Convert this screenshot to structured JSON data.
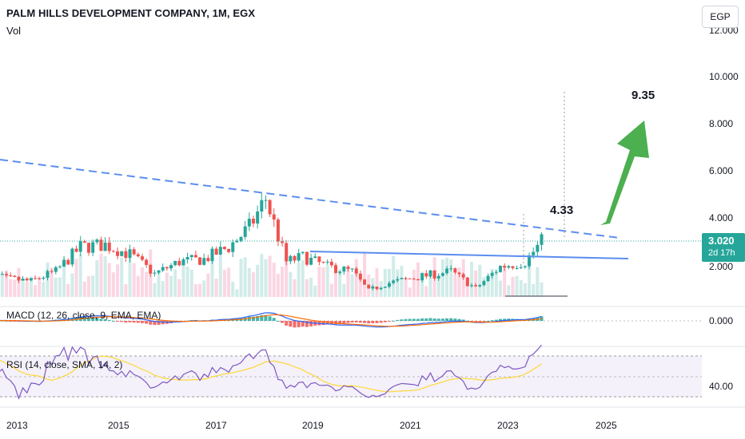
{
  "header": {
    "title": "PALM HILLS DEVELOPMENT COMPANY, 1M, EGX",
    "volume_label": "Vol",
    "currency_button": "EGP"
  },
  "price_badge": {
    "value": "3.020",
    "countdown": "2d 17h",
    "color": "#26a69a"
  },
  "indicators": {
    "macd_label": "MACD (12, 26, close, 9, EMA, EMA)",
    "rsi_label": "RSI (14, close, SMA, 14, 2)"
  },
  "annotations": {
    "target_high": "9.35",
    "target_mid": "4.33"
  },
  "colors": {
    "up": "#26a69a",
    "down": "#ef5350",
    "trendline": "#5b8def",
    "arrow": "#4caf50",
    "macd": "#2962ff",
    "signal": "#ff6d00",
    "rsi": "#7e57c2",
    "rsi_ma": "#fdd835"
  },
  "chart_data": {
    "type": "candlestick",
    "x_tick_labels": [
      "2013",
      "2015",
      "2017",
      "2019",
      "2021",
      "2023",
      "2025"
    ],
    "price_axis_labels": [
      "12.000",
      "10.000",
      "8.000",
      "6.000",
      "4.000",
      "2.000"
    ],
    "macd_axis_label": "0.000",
    "rsi_axis_label": "40.00",
    "last_price": 3.02,
    "price_path": [
      [
        "2012-07",
        1.8
      ],
      [
        "2013-01",
        1.5
      ],
      [
        "2013-07",
        1.4
      ],
      [
        "2014-01",
        1.8
      ],
      [
        "2014-07",
        2.8
      ],
      [
        "2015-01",
        2.9
      ],
      [
        "2015-07",
        2.5
      ],
      [
        "2016-01",
        1.7
      ],
      [
        "2016-07",
        2.2
      ],
      [
        "2017-01",
        2.3
      ],
      [
        "2017-07",
        2.8
      ],
      [
        "2017-12",
        3.6
      ],
      [
        "2018-04",
        4.8
      ],
      [
        "2018-09",
        2.2
      ],
      [
        "2019-01",
        2.4
      ],
      [
        "2019-07",
        2.0
      ],
      [
        "2020-01",
        1.8
      ],
      [
        "2020-05",
        1.0
      ],
      [
        "2020-09",
        1.3
      ],
      [
        "2021-06",
        1.6
      ],
      [
        "2022-01",
        1.8
      ],
      [
        "2022-07",
        1.1
      ],
      [
        "2023-01",
        2.0
      ],
      [
        "2023-07",
        2.2
      ],
      [
        "2023-11",
        3.02
      ]
    ],
    "trendlines": {
      "descending_resistance": {
        "start": [
          "2012-07",
          6.5
        ],
        "end": [
          "2025-06",
          3.1
        ],
        "style": "dashed"
      },
      "horizontal_neckline": {
        "start": [
          "2018-12",
          2.6
        ],
        "end": [
          "2025-08",
          2.3
        ],
        "style": "solid"
      }
    },
    "projection": {
      "breakout_level": 4.33,
      "target": 9.35
    }
  }
}
